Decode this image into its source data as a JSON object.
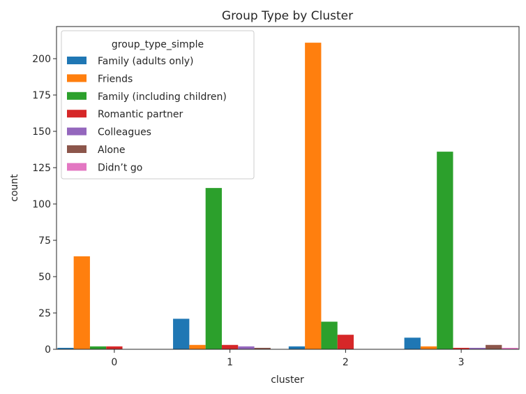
{
  "chart_data": {
    "type": "bar",
    "title": "Group Type by Cluster",
    "xlabel": "cluster",
    "ylabel": "count",
    "categories": [
      "0",
      "1",
      "2",
      "3"
    ],
    "ylim": [
      0,
      220
    ],
    "yticks": [
      0,
      25,
      50,
      75,
      100,
      125,
      150,
      175,
      200
    ],
    "grid": false,
    "legend": {
      "title": "group_type_simple",
      "position": "top-left"
    },
    "series": [
      {
        "name": "Family (adults only)",
        "color": "#1f77b4",
        "values": [
          1,
          21,
          2,
          8
        ]
      },
      {
        "name": "Friends",
        "color": "#ff7f0e",
        "values": [
          64,
          3,
          211,
          2
        ]
      },
      {
        "name": "Family (including children)",
        "color": "#2ca02c",
        "values": [
          2,
          111,
          19,
          136
        ]
      },
      {
        "name": "Romantic partner",
        "color": "#d62728",
        "values": [
          2,
          3,
          10,
          1
        ]
      },
      {
        "name": "Colleagues",
        "color": "#9467bd",
        "values": [
          0,
          2,
          0,
          1
        ]
      },
      {
        "name": "Alone",
        "color": "#8c564b",
        "values": [
          0,
          1,
          0,
          3
        ]
      },
      {
        "name": "Didn’t go",
        "color": "#e377c2",
        "values": [
          0,
          0,
          0,
          1
        ]
      }
    ]
  }
}
